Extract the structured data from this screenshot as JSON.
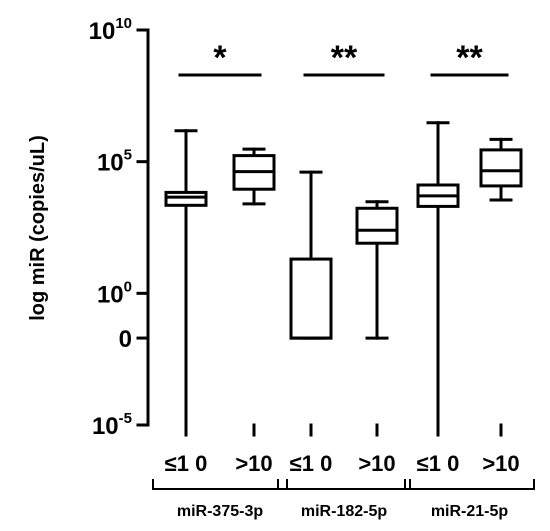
{
  "chart_data": {
    "type": "box",
    "ylabel": "log miR (copies/uL)",
    "yscale": "log",
    "ylim": [
      1e-05,
      10000000000.0
    ],
    "y_ticks": [
      {
        "base": "10",
        "exp": "10",
        "value": 10000000000.0
      },
      {
        "base": "10",
        "exp": "5",
        "value": 100000.0
      },
      {
        "base": "10",
        "exp": "0",
        "value": 1
      },
      {
        "base": "0",
        "exp": "",
        "value": 0.02
      },
      {
        "base": "10",
        "exp": "-5",
        "value": 1e-05
      }
    ],
    "groups": [
      {
        "name": "miR-375-3p",
        "significance": "*",
        "boxes": [
          {
            "label": "≤1 0",
            "whisker_low": 1e-05,
            "q1": 2200,
            "median": 4500,
            "q3": 6800,
            "whisker_high": 1500000.0
          },
          {
            "label": ">10",
            "q1": 9000,
            "median": 42000,
            "q3": 170000,
            "whisker_low": 2500,
            "whisker_high": 300000
          }
        ]
      },
      {
        "name": "miR-182-5p",
        "significance": "**",
        "boxes": [
          {
            "label": "≤1 0",
            "whisker_low": 0.02,
            "q1": 0.02,
            "median": 0.02,
            "q3": 20,
            "whisker_high": 40000
          },
          {
            "label": ">10",
            "q1": 80,
            "median": 250,
            "q3": 1700,
            "whisker_low": 0.02,
            "whisker_high": 3000
          }
        ]
      },
      {
        "name": "miR-21-5p",
        "significance": "**",
        "boxes": [
          {
            "label": "≤1 0",
            "whisker_low": 1e-05,
            "q1": 2000,
            "median": 5000,
            "q3": 13000,
            "whisker_high": 3000000
          },
          {
            "label": ">10",
            "q1": 12000,
            "median": 45000,
            "q3": 280000,
            "whisker_low": 3500,
            "whisker_high": 700000
          }
        ]
      }
    ]
  }
}
